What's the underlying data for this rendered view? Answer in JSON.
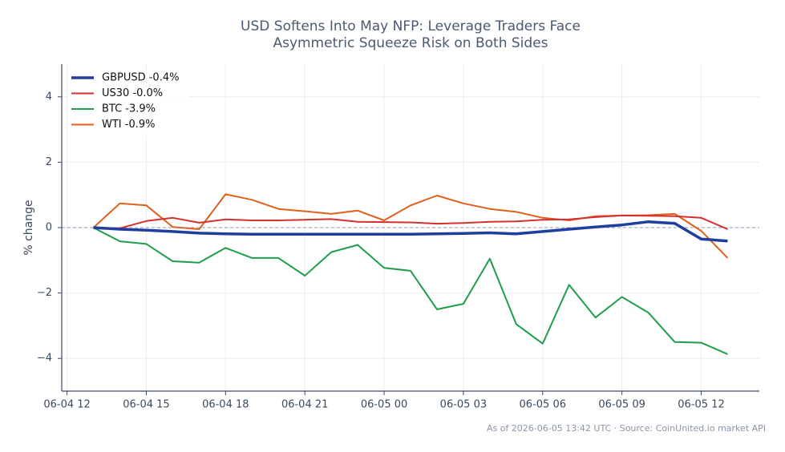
{
  "chart_data": {
    "type": "line",
    "title": "USD Softens Into May NFP: Leverage Traders Face\nAsymmetric Squeeze Risk on Both Sides",
    "y_label": "% change",
    "source": "As of 2026-06-05 13:42 UTC · Source: CoinUnited.io market API",
    "x": [
      "06-04 13",
      "06-04 14",
      "06-04 15",
      "06-04 16",
      "06-04 17",
      "06-04 18",
      "06-04 19",
      "06-04 20",
      "06-04 21",
      "06-04 22",
      "06-04 23",
      "06-05 00",
      "06-05 01",
      "06-05 02",
      "06-05 03",
      "06-05 04",
      "06-05 05",
      "06-05 06",
      "06-05 07",
      "06-05 08",
      "06-05 09",
      "06-05 10",
      "06-05 11",
      "06-05 12",
      "06-05 13"
    ],
    "series": [
      {
        "name": "GBPUSD -0.4%",
        "color": "#1f3fa0",
        "width": 3.5,
        "values": [
          0,
          -0.05,
          -0.08,
          -0.12,
          -0.17,
          -0.19,
          -0.2,
          -0.2,
          -0.2,
          -0.2,
          -0.2,
          -0.2,
          -0.2,
          -0.19,
          -0.18,
          -0.16,
          -0.19,
          -0.12,
          -0.05,
          0.02,
          0.08,
          0.18,
          0.13,
          -0.35,
          -0.41
        ]
      },
      {
        "name": "US30 -0.0%",
        "color": "#d62f2f",
        "width": 2,
        "values": [
          0,
          -0.02,
          0.2,
          0.3,
          0.15,
          0.25,
          0.22,
          0.22,
          0.24,
          0.26,
          0.18,
          0.17,
          0.16,
          0.12,
          0.14,
          0.18,
          0.19,
          0.24,
          0.25,
          0.32,
          0.37,
          0.36,
          0.35,
          0.3,
          -0.05
        ]
      },
      {
        "name": "BTC -3.9%",
        "color": "#1f9e4a",
        "width": 2,
        "values": [
          0,
          -0.42,
          -0.5,
          -1.03,
          -1.07,
          -0.62,
          -0.93,
          -0.93,
          -1.47,
          -0.75,
          -0.53,
          -1.23,
          -1.32,
          -2.5,
          -2.33,
          -0.95,
          -2.95,
          -3.55,
          -1.75,
          -2.75,
          -2.12,
          -2.6,
          -3.5,
          -3.52,
          -3.87
        ]
      },
      {
        "name": "WTI -0.9%",
        "color": "#e0601c",
        "width": 2,
        "values": [
          0,
          0.74,
          0.68,
          0.02,
          -0.05,
          1.02,
          0.85,
          0.57,
          0.5,
          0.42,
          0.52,
          0.22,
          0.68,
          0.98,
          0.74,
          0.57,
          0.48,
          0.3,
          0.22,
          0.35,
          0.37,
          0.38,
          0.42,
          -0.1,
          -0.93
        ]
      }
    ],
    "xlim": [
      "06-04 11:48",
      "06-05 14:12"
    ],
    "xticks": [
      "06-04 12",
      "06-04 15",
      "06-04 18",
      "06-04 21",
      "06-05 00",
      "06-05 03",
      "06-05 06",
      "06-05 09",
      "06-05 12"
    ],
    "ylim": [
      -5,
      5
    ],
    "yticks": [
      {
        "value": -4,
        "label": "−4"
      },
      {
        "value": -2,
        "label": "−2"
      },
      0,
      2,
      4
    ],
    "reference_line": 0,
    "grid": true,
    "legend": "upper left"
  }
}
